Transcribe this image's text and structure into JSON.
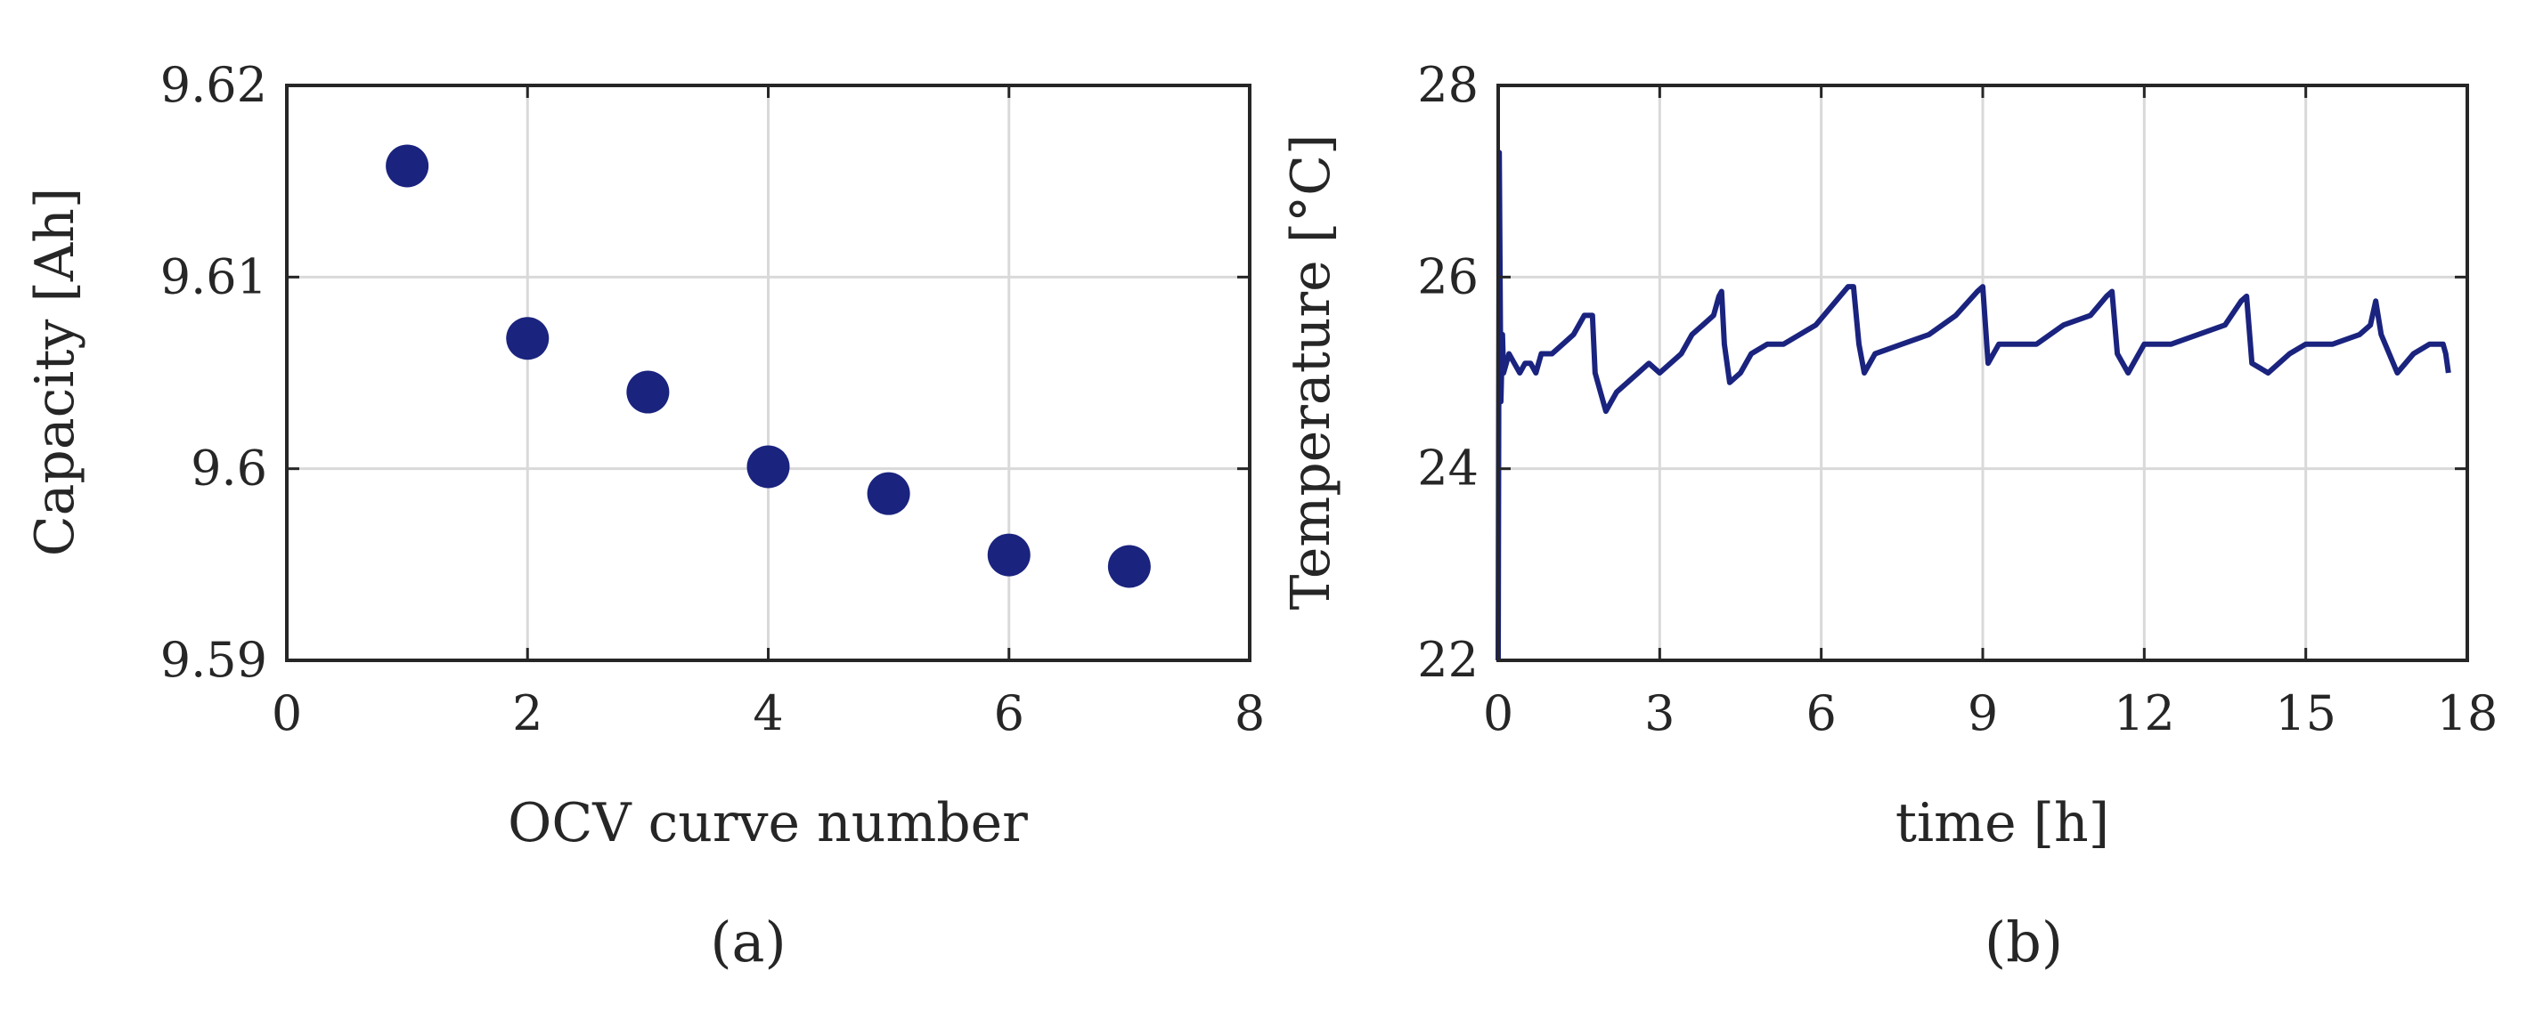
{
  "colors": {
    "series": "#1a237e",
    "axis": "#262626",
    "grid": "#d9d9d9"
  },
  "chart_data": [
    {
      "type": "scatter",
      "caption": "(a)",
      "title": "",
      "xlabel": "OCV curve number",
      "ylabel": "Capacity [Ah]",
      "xlim": [
        0,
        8
      ],
      "ylim": [
        9.59,
        9.62
      ],
      "xticks": [
        "0",
        "2",
        "4",
        "6",
        "8"
      ],
      "yticks": [
        "9.59",
        "9.6",
        "9.61",
        "9.62"
      ],
      "grid": true,
      "x": [
        1,
        2,
        3,
        4,
        5,
        6,
        7
      ],
      "y": [
        9.6158,
        9.6068,
        9.604,
        9.6001,
        9.5987,
        9.5955,
        9.5949
      ]
    },
    {
      "type": "line",
      "caption": "(b)",
      "title": "",
      "xlabel": "time [h]",
      "ylabel": "Temperature [°C]",
      "xlim": [
        0,
        18
      ],
      "ylim": [
        22,
        28
      ],
      "xticks": [
        "0",
        "3",
        "6",
        "9",
        "12",
        "15",
        "18"
      ],
      "yticks": [
        "22",
        "24",
        "26",
        "28"
      ],
      "grid": true,
      "x": [
        0,
        0.02,
        0.05,
        0.08,
        0.1,
        0.15,
        0.2,
        0.3,
        0.4,
        0.5,
        0.6,
        0.7,
        0.8,
        1.0,
        1.2,
        1.4,
        1.6,
        1.75,
        1.8,
        1.9,
        2.0,
        2.1,
        2.2,
        2.4,
        2.6,
        2.8,
        3.0,
        3.2,
        3.4,
        3.6,
        3.8,
        4.0,
        4.1,
        4.15,
        4.2,
        4.3,
        4.5,
        4.7,
        5.0,
        5.3,
        5.6,
        5.9,
        6.2,
        6.5,
        6.6,
        6.7,
        6.8,
        7.0,
        7.5,
        8.0,
        8.5,
        8.9,
        9.0,
        9.1,
        9.3,
        9.6,
        10.0,
        10.5,
        11.0,
        11.3,
        11.4,
        11.5,
        11.7,
        12.0,
        12.5,
        13.0,
        13.5,
        13.8,
        13.9,
        14.0,
        14.3,
        14.7,
        15.0,
        15.5,
        16.0,
        16.2,
        16.3,
        16.4,
        16.7,
        17.0,
        17.3,
        17.55,
        17.6,
        17.65
      ],
      "y": [
        22.0,
        27.3,
        24.7,
        25.4,
        25.0,
        25.1,
        25.2,
        25.1,
        25.0,
        25.1,
        25.1,
        25.0,
        25.2,
        25.2,
        25.3,
        25.4,
        25.6,
        25.6,
        25.0,
        24.8,
        24.6,
        24.7,
        24.8,
        24.9,
        25.0,
        25.1,
        25.0,
        25.1,
        25.2,
        25.4,
        25.5,
        25.6,
        25.8,
        25.85,
        25.3,
        24.9,
        25.0,
        25.2,
        25.3,
        25.3,
        25.4,
        25.5,
        25.7,
        25.9,
        25.9,
        25.3,
        25.0,
        25.2,
        25.3,
        25.4,
        25.6,
        25.85,
        25.9,
        25.1,
        25.3,
        25.3,
        25.3,
        25.5,
        25.6,
        25.8,
        25.85,
        25.2,
        25.0,
        25.3,
        25.3,
        25.4,
        25.5,
        25.75,
        25.8,
        25.1,
        25.0,
        25.2,
        25.3,
        25.3,
        25.4,
        25.5,
        25.75,
        25.4,
        25.0,
        25.2,
        25.3,
        25.3,
        25.2,
        25.0
      ]
    }
  ]
}
